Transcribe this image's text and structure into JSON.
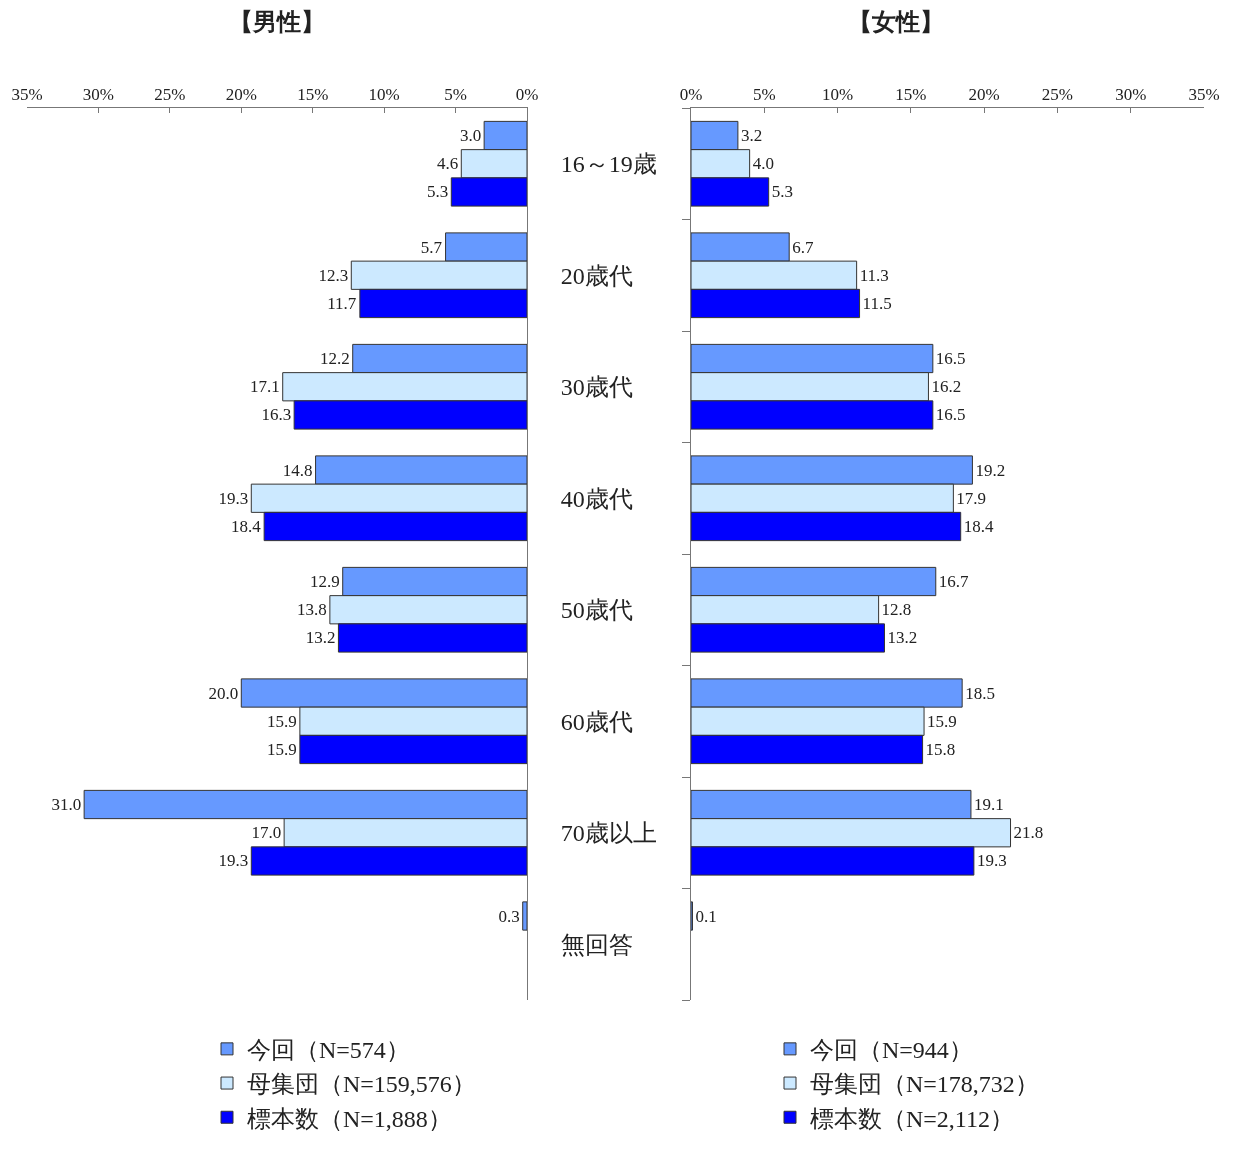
{
  "chart_data": [
    {
      "type": "bar",
      "orientation": "horizontal",
      "title": "【男性】",
      "categories": [
        "16～19歳",
        "20歳代",
        "30歳代",
        "40歳代",
        "50歳代",
        "60歳代",
        "70歳以上",
        "無回答"
      ],
      "xlim": [
        35,
        0
      ],
      "xticks": [
        {
          "value": 35,
          "label": "35%"
        },
        {
          "value": 30,
          "label": "30%"
        },
        {
          "value": 25,
          "label": "25%"
        },
        {
          "value": 20,
          "label": "20%"
        },
        {
          "value": 15,
          "label": "15%"
        },
        {
          "value": 10,
          "label": "10%"
        },
        {
          "value": 5,
          "label": "5%"
        },
        {
          "value": 0,
          "label": "0%"
        }
      ],
      "legend": "bottom",
      "series": [
        {
          "name": "今回（N=574）",
          "color": "#6699ff",
          "values": [
            3.0,
            5.7,
            12.2,
            14.8,
            12.9,
            20.0,
            31.0,
            0.3
          ],
          "value_labels": [
            "3.0",
            "5.7",
            "12.2",
            "14.8",
            "12.9",
            "20.0",
            "31.0",
            "0.3"
          ]
        },
        {
          "name": "母集団（N=159,576）",
          "color": "#cce9ff",
          "values": [
            4.6,
            12.3,
            17.1,
            19.3,
            13.8,
            15.9,
            17.0,
            null
          ],
          "value_labels": [
            "4.6",
            "12.3",
            "17.1",
            "19.3",
            "13.8",
            "15.9",
            "17.0",
            null
          ]
        },
        {
          "name": "標本数（N=1,888）",
          "color": "#0000ff",
          "values": [
            5.3,
            11.7,
            16.3,
            18.4,
            13.2,
            15.9,
            19.3,
            null
          ],
          "value_labels": [
            "5.3",
            "11.7",
            "16.3",
            "18.4",
            "13.2",
            "15.9",
            "19.3",
            null
          ]
        }
      ]
    },
    {
      "type": "bar",
      "orientation": "horizontal",
      "title": "【女性】",
      "categories": [
        null,
        null,
        null,
        null,
        null,
        null,
        null,
        null
      ],
      "tick_labels": "x",
      "xlim": [
        0,
        35
      ],
      "xticks": [
        {
          "value": 0,
          "label": "0%"
        },
        {
          "value": 5,
          "label": "5%"
        },
        {
          "value": 10,
          "label": "10%"
        },
        {
          "value": 15,
          "label": "15%"
        },
        {
          "value": 20,
          "label": "20%"
        },
        {
          "value": 25,
          "label": "25%"
        },
        {
          "value": 30,
          "label": "30%"
        },
        {
          "value": 35,
          "label": "35%"
        }
      ],
      "legend": "bottom",
      "series": [
        {
          "name": "今回（N=944）",
          "color": "#6699ff",
          "values": [
            3.2,
            6.7,
            16.5,
            19.2,
            16.7,
            18.5,
            19.1,
            0.1
          ],
          "value_labels": [
            "3.2",
            "6.7",
            "16.5",
            "19.2",
            "16.7",
            "18.5",
            "19.1",
            "0.1"
          ]
        },
        {
          "name": "母集団（N=178,732）",
          "color": "#cce9ff",
          "values": [
            4.0,
            11.3,
            16.2,
            17.9,
            12.8,
            15.9,
            21.8,
            null
          ],
          "value_labels": [
            "4.0",
            "11.3",
            "16.2",
            "17.9",
            "12.8",
            "15.9",
            "21.8",
            null
          ]
        },
        {
          "name": "標本数（N=2,112）",
          "color": "#0000ff",
          "values": [
            5.3,
            11.5,
            16.5,
            18.4,
            13.2,
            15.8,
            19.3,
            null
          ],
          "value_labels": [
            "5.3",
            "11.5",
            "16.5",
            "18.4",
            "13.2",
            "15.8",
            "19.3",
            null
          ]
        }
      ]
    }
  ]
}
